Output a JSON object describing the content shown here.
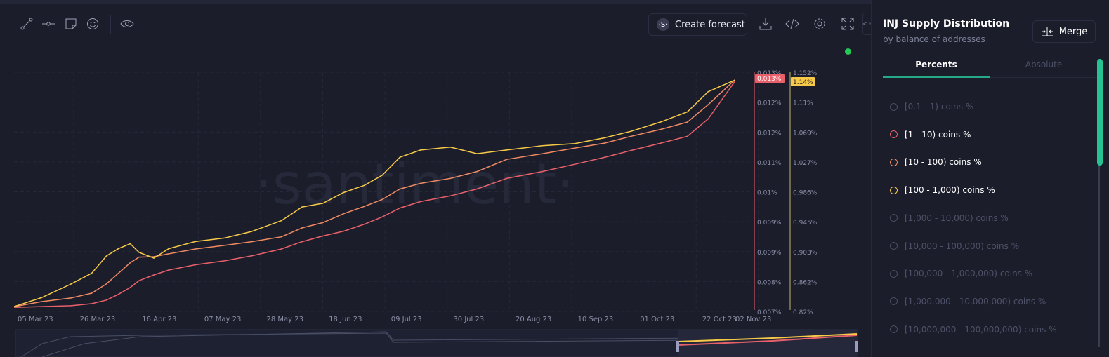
{
  "toolbar": {
    "icons": [
      "line-drawing-icon",
      "horizontal-line-icon",
      "note-icon",
      "emoji-icon",
      "eye-icon",
      "download-icon",
      "embed-code-icon",
      "settings-gear-icon",
      "fullscreen-icon"
    ],
    "forecast_label": "Create forecast",
    "forecast_icon_text": "·S·"
  },
  "watermark": "·santiment·",
  "sidebar": {
    "title": "INJ Supply Distribution",
    "subtitle": "by balance of addresses",
    "merge_label": "Merge",
    "tabs": [
      {
        "label": "Percents",
        "active": true
      },
      {
        "label": "Absolute",
        "active": false
      }
    ],
    "items": [
      {
        "label": "[0.1 - 1) coins %",
        "active": false,
        "color": "#6a6e85"
      },
      {
        "label": "[1 - 10) coins %",
        "active": true,
        "color": "#e8616a"
      },
      {
        "label": "[10 - 100) coins %",
        "active": true,
        "color": "#f08a63"
      },
      {
        "label": "[100 - 1,000) coins %",
        "active": true,
        "color": "#f7c948"
      },
      {
        "label": "[1,000 - 10,000) coins %",
        "active": false,
        "color": "#6a6e85"
      },
      {
        "label": "[10,000 - 100,000) coins %",
        "active": false,
        "color": "#6a6e85"
      },
      {
        "label": "[100,000 - 1,000,000) coins %",
        "active": false,
        "color": "#6a6e85"
      },
      {
        "label": "[1,000,000 - 10,000,000) coins %",
        "active": false,
        "color": "#6a6e85"
      },
      {
        "label": "[10,000,000 - 100,000,000) coins %",
        "active": false,
        "color": "#6a6e85"
      }
    ]
  },
  "chart_data": {
    "type": "line",
    "grid": true,
    "x_tick_labels": [
      "05 Mar 23",
      "26 Mar 23",
      "16 Apr 23",
      "07 May 23",
      "28 May 23",
      "18 Jun 23",
      "09 Jul 23",
      "30 Jul 23",
      "20 Aug 23",
      "10 Sep 23",
      "01 Oct 23",
      "22 Oct 23",
      "02 Nov 23"
    ],
    "x": [
      "2023-03-04",
      "2023-03-13",
      "2023-03-23",
      "2023-03-30",
      "2023-04-04",
      "2023-04-08",
      "2023-04-12",
      "2023-04-15",
      "2023-04-20",
      "2023-04-25",
      "2023-05-04",
      "2023-05-14",
      "2023-05-23",
      "2023-06-02",
      "2023-06-09",
      "2023-06-16",
      "2023-06-23",
      "2023-06-30",
      "2023-07-06",
      "2023-07-12",
      "2023-07-19",
      "2023-07-29",
      "2023-08-07",
      "2023-08-17",
      "2023-08-29",
      "2023-09-09",
      "2023-09-19",
      "2023-09-28",
      "2023-10-08",
      "2023-10-17",
      "2023-10-24",
      "2023-11-02"
    ],
    "axes": {
      "left": {
        "ylim": [
          0.0071,
          0.013
        ],
        "tick_labels": [
          "0.013%",
          "0.012%",
          "0.012%",
          "0.011%",
          "0.01%",
          "0.009%",
          "0.009%",
          "0.008%",
          "0.007%"
        ],
        "color": "#e8616a",
        "last_value_label": "0.013%"
      },
      "right": {
        "ylim": [
          0.82,
          1.152
        ],
        "tick_labels": [
          "1.152%",
          "1.11%",
          "1.069%",
          "1.027%",
          "0.986%",
          "0.945%",
          "0.903%",
          "0.862%",
          "0.82%"
        ],
        "color": "#f7c948",
        "last_value_label": "1.14%"
      }
    },
    "series": [
      {
        "name": "[1 - 10) coins %",
        "axis": "left",
        "color": "#e8616a",
        "values": [
          0.0072,
          0.00722,
          0.00724,
          0.00729,
          0.00738,
          0.00752,
          0.00769,
          0.00786,
          0.008,
          0.00812,
          0.00825,
          0.00835,
          0.00847,
          0.00864,
          0.00882,
          0.00896,
          0.00908,
          0.00925,
          0.00943,
          0.00965,
          0.00981,
          0.00995,
          0.01012,
          0.01038,
          0.01055,
          0.01073,
          0.0109,
          0.01107,
          0.01125,
          0.01142,
          0.01185,
          0.01277
        ]
      },
      {
        "name": "[10 - 100) coins %",
        "axis": "left",
        "color": "#f08a63",
        "values": [
          0.00722,
          0.00734,
          0.00743,
          0.00755,
          0.00778,
          0.00804,
          0.0083,
          0.00844,
          0.00845,
          0.00852,
          0.00864,
          0.00873,
          0.00882,
          0.00894,
          0.00916,
          0.00929,
          0.00951,
          0.00969,
          0.00986,
          0.01012,
          0.01026,
          0.01038,
          0.01055,
          0.01085,
          0.01099,
          0.01113,
          0.01125,
          0.01142,
          0.01159,
          0.01177,
          0.0122,
          0.01281
        ]
      },
      {
        "name": "[100 - 1,000) coins %",
        "axis": "right",
        "color": "#f7c948",
        "values": [
          0.827,
          0.839,
          0.858,
          0.873,
          0.897,
          0.907,
          0.914,
          0.902,
          0.894,
          0.907,
          0.917,
          0.922,
          0.931,
          0.946,
          0.965,
          0.97,
          0.985,
          0.995,
          1.009,
          1.034,
          1.044,
          1.048,
          1.039,
          1.044,
          1.05,
          1.053,
          1.061,
          1.07,
          1.083,
          1.097,
          1.125,
          1.141
        ]
      }
    ]
  }
}
